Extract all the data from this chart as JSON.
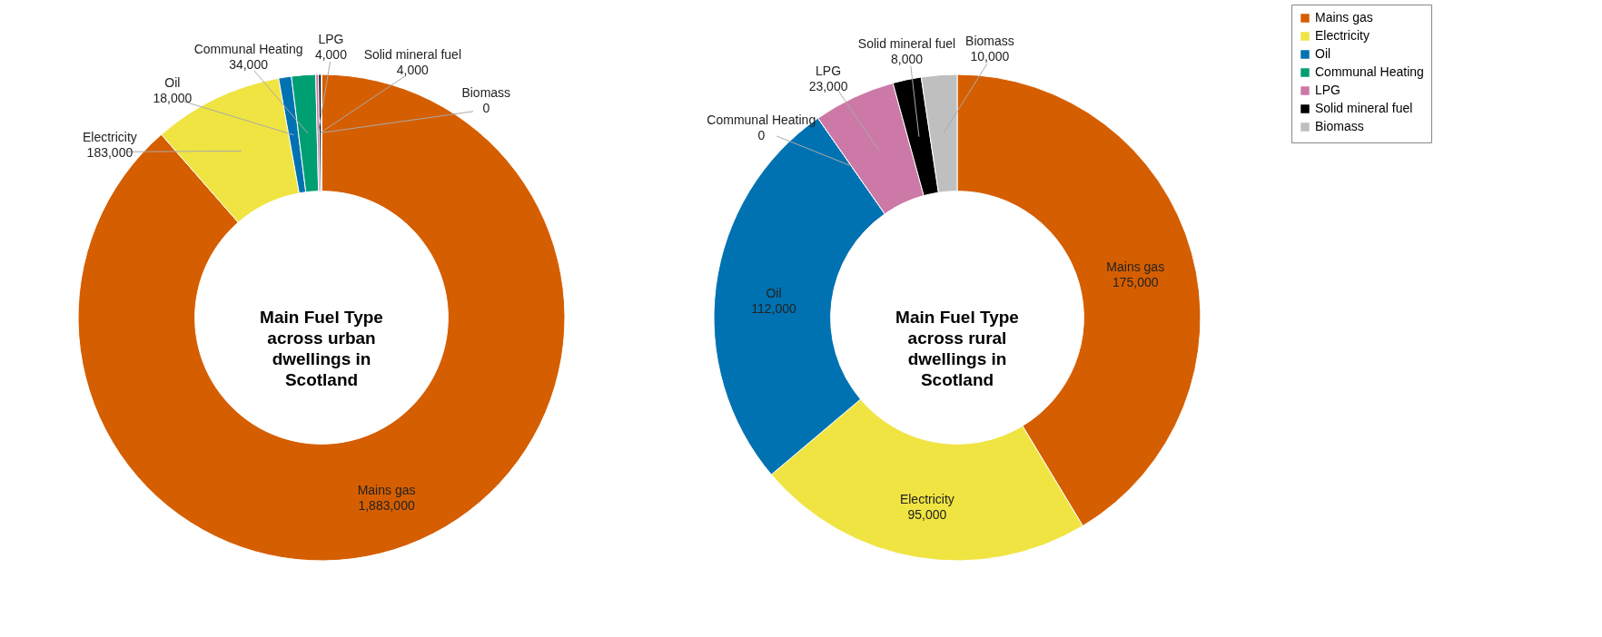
{
  "chart_data": [
    {
      "type": "donut",
      "title": "Main Fuel Type across urban dwellings in Scotland",
      "categories": [
        "Mains gas",
        "Electricity",
        "Oil",
        "Communal Heating",
        "LPG",
        "Solid mineral fuel",
        "Biomass"
      ],
      "values": [
        1883000,
        183000,
        18000,
        34000,
        4000,
        4000,
        0
      ],
      "value_labels": [
        "1,883,000",
        "183,000",
        "18,000",
        "34,000",
        "4,000",
        "4,000",
        "0"
      ],
      "colors": [
        "#d55e00",
        "#f0e442",
        "#0072b2",
        "#009e73",
        "#cc79a7",
        "#000000",
        "#bfbfbf"
      ],
      "legend": "right"
    },
    {
      "type": "donut",
      "title": "Main Fuel Type across rural dwellings in Scotland",
      "categories": [
        "Mains gas",
        "Electricity",
        "Oil",
        "Communal Heating",
        "LPG",
        "Solid mineral fuel",
        "Biomass"
      ],
      "values": [
        175000,
        95000,
        112000,
        0,
        23000,
        8000,
        10000
      ],
      "value_labels": [
        "175,000",
        "95,000",
        "112,000",
        "0",
        "23,000",
        "8,000",
        "10,000"
      ],
      "colors": [
        "#d55e00",
        "#f0e442",
        "#0072b2",
        "#009e73",
        "#cc79a7",
        "#000000",
        "#bfbfbf"
      ],
      "legend": false
    }
  ]
}
